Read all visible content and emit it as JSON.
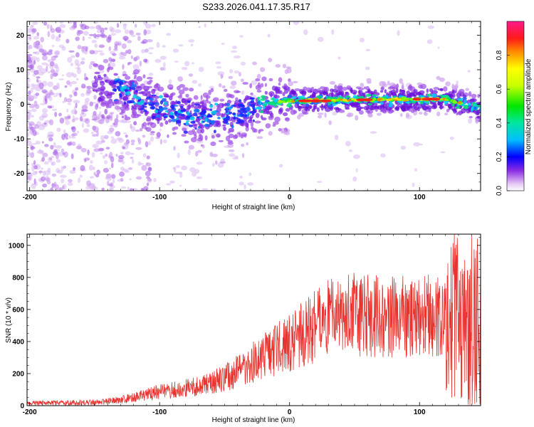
{
  "title": "S233.2026.041.17.35.R17",
  "chart_data": [
    {
      "type": "heatmap",
      "name": "spectrogram",
      "title": "S233.2026.041.17.35.R17",
      "xlabel": "Height of straight line (km)",
      "ylabel": "Frequency (Hz)",
      "xlim": [
        -202,
        147
      ],
      "ylim": [
        -25,
        24
      ],
      "x_ticks": [
        -200,
        -100,
        0,
        100
      ],
      "x_tick_labels": [
        "-200",
        "-100",
        "0",
        "100"
      ],
      "y_ticks": [
        20,
        10,
        0,
        -10,
        -20
      ],
      "y_tick_labels": [
        "20",
        "10",
        "0",
        "-10",
        "-20"
      ],
      "ridge": [
        {
          "x": -130,
          "y": 5
        },
        {
          "x": -120,
          "y": 2
        },
        {
          "x": -100,
          "y": -1
        },
        {
          "x": -80,
          "y": -3
        },
        {
          "x": -60,
          "y": -4
        },
        {
          "x": -40,
          "y": -3
        },
        {
          "x": -25,
          "y": -1
        },
        {
          "x": -15,
          "y": 0.5
        },
        {
          "x": 0,
          "y": 1
        },
        {
          "x": 40,
          "y": 1.2
        },
        {
          "x": 80,
          "y": 1.5
        },
        {
          "x": 120,
          "y": 1.5
        },
        {
          "x": 135,
          "y": 0
        },
        {
          "x": 145,
          "y": -1
        }
      ],
      "colorbar": {
        "label": "Normalized spectral amplitude",
        "range": [
          0,
          1
        ],
        "ticks": [
          0,
          0.2,
          0.4,
          0.6,
          0.8
        ],
        "tick_labels": [
          "0.0",
          "0.2",
          "0.4",
          "0.6",
          "0.8"
        ]
      }
    },
    {
      "type": "line",
      "name": "snr",
      "xlabel": "Height of straight line (km)",
      "ylabel": "SNR (10 * v/v)",
      "xlim": [
        -202,
        147
      ],
      "ylim": [
        0,
        1070
      ],
      "x_ticks": [
        -200,
        -100,
        0,
        100
      ],
      "x_tick_labels": [
        "-200",
        "-100",
        "0",
        "100"
      ],
      "y_ticks": [
        0,
        200,
        400,
        600,
        800,
        1000
      ],
      "y_tick_labels": [
        "0",
        "200",
        "400",
        "600",
        "800",
        "1000"
      ],
      "color": "#e8332f",
      "envelope": [
        {
          "x": -202,
          "y": 15
        },
        {
          "x": -150,
          "y": 20
        },
        {
          "x": -130,
          "y": 35
        },
        {
          "x": -110,
          "y": 70
        },
        {
          "x": -90,
          "y": 100
        },
        {
          "x": -70,
          "y": 120
        },
        {
          "x": -50,
          "y": 170
        },
        {
          "x": -30,
          "y": 260
        },
        {
          "x": -15,
          "y": 330
        },
        {
          "x": 0,
          "y": 390
        },
        {
          "x": 15,
          "y": 470
        },
        {
          "x": 30,
          "y": 540
        },
        {
          "x": 50,
          "y": 570
        },
        {
          "x": 70,
          "y": 560
        },
        {
          "x": 90,
          "y": 555
        },
        {
          "x": 110,
          "y": 560
        },
        {
          "x": 125,
          "y": 550
        },
        {
          "x": 135,
          "y": 500
        },
        {
          "x": 147,
          "y": 400
        }
      ]
    }
  ]
}
